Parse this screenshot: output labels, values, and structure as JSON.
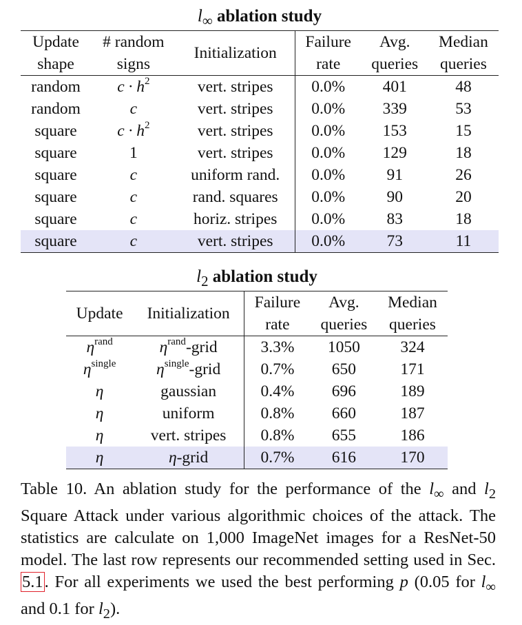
{
  "linf": {
    "title_sym": "l",
    "title_sub": "∞",
    "title_text": "ablation study",
    "headers": [
      {
        "line1": "Update",
        "line2": "shape"
      },
      {
        "line1": "# random",
        "line2": "signs"
      },
      {
        "single": "Initialization"
      },
      {
        "line1": "Failure",
        "line2": "rate"
      },
      {
        "line1": "Avg.",
        "line2": "queries"
      },
      {
        "line1": "Median",
        "line2": "queries"
      }
    ],
    "rows": [
      {
        "shape": "random",
        "signs": "c · h",
        "signs_sup": "2",
        "init": "vert. stripes",
        "fail": "0.0%",
        "avg": "401",
        "median": "48"
      },
      {
        "shape": "random",
        "signs": "c",
        "signs_sup": "",
        "init": "vert. stripes",
        "fail": "0.0%",
        "avg": "339",
        "median": "53"
      },
      {
        "shape": "square",
        "signs": "c · h",
        "signs_sup": "2",
        "init": "vert. stripes",
        "fail": "0.0%",
        "avg": "153",
        "median": "15"
      },
      {
        "shape": "square",
        "signs": "1",
        "signs_sup": "",
        "init": "vert. stripes",
        "fail": "0.0%",
        "avg": "129",
        "median": "18"
      },
      {
        "shape": "square",
        "signs": "c",
        "signs_sup": "",
        "init": "uniform rand.",
        "fail": "0.0%",
        "avg": "91",
        "median": "26"
      },
      {
        "shape": "square",
        "signs": "c",
        "signs_sup": "",
        "init": "rand. squares",
        "fail": "0.0%",
        "avg": "90",
        "median": "20"
      },
      {
        "shape": "square",
        "signs": "c",
        "signs_sup": "",
        "init": "horiz. stripes",
        "fail": "0.0%",
        "avg": "83",
        "median": "18"
      },
      {
        "shape": "square",
        "signs": "c",
        "signs_sup": "",
        "init": "vert. stripes",
        "fail": "0.0%",
        "avg": "73",
        "median": "11"
      }
    ]
  },
  "l2": {
    "title_sym": "l",
    "title_sub": "2",
    "title_text": "ablation study",
    "headers": [
      {
        "single": "Update"
      },
      {
        "single": "Initialization"
      },
      {
        "line1": "Failure",
        "line2": "rate"
      },
      {
        "line1": "Avg.",
        "line2": "queries"
      },
      {
        "line1": "Median",
        "line2": "queries"
      }
    ],
    "rows": [
      {
        "upd": "η",
        "upd_sup": "rand",
        "init_sym": "η",
        "init_sup": "rand",
        "init_text": "-grid",
        "fail": "3.3%",
        "avg": "1050",
        "median": "324"
      },
      {
        "upd": "η",
        "upd_sup": "single",
        "init_sym": "η",
        "init_sup": "single",
        "init_text": "-grid",
        "fail": "0.7%",
        "avg": "650",
        "median": "171"
      },
      {
        "upd": "η",
        "upd_sup": "",
        "init_sym": "",
        "init_sup": "",
        "init_text": "gaussian",
        "fail": "0.4%",
        "avg": "696",
        "median": "189"
      },
      {
        "upd": "η",
        "upd_sup": "",
        "init_sym": "",
        "init_sup": "",
        "init_text": "uniform",
        "fail": "0.8%",
        "avg": "660",
        "median": "187"
      },
      {
        "upd": "η",
        "upd_sup": "",
        "init_sym": "",
        "init_sup": "",
        "init_text": "vert. stripes",
        "fail": "0.8%",
        "avg": "655",
        "median": "186"
      },
      {
        "upd": "η",
        "upd_sup": "",
        "init_sym": "η",
        "init_sup": "",
        "init_text": "-grid",
        "fail": "0.7%",
        "avg": "616",
        "median": "170"
      }
    ]
  },
  "caption": {
    "p1": "Table 10. An ablation study for the performance of the ",
    "sym_l": "l",
    "sub_inf": "∞",
    "p2": " and ",
    "sub_2": "2",
    "p3": " Square Attack under various algorithmic choices of the attack. The statistics are calculate on 1,000 ImageNet images for a ResNet-50 model. The last row represents our recommended setting used in Sec. ",
    "ref": "5.1",
    "p4": ". For all experiments we used the best performing ",
    "sym_p": "p",
    "p5": " (0.05 for ",
    "p6": " and 0.1 for ",
    "p7": ")."
  },
  "colors": {
    "highlight": "#e4e4f7",
    "ref_box": "#e0212b"
  }
}
